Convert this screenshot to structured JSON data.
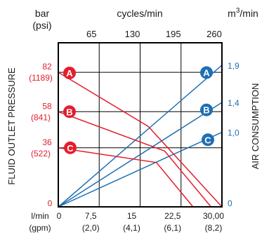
{
  "chart_data": {
    "type": "line",
    "axes": {
      "left_unit": "bar",
      "left_unit_alt": "(psi)",
      "top_unit": "cycles/min",
      "right_unit_base": "m",
      "right_unit_exp": "3",
      "right_unit_tail": "/min",
      "bottom_unit": "l/min",
      "bottom_unit_alt": "(gpm)",
      "left_title": "FLUID OUTLET PRESSURE",
      "right_title": "AIR CONSUMPTION"
    },
    "x_range": [
      0,
      30
    ],
    "pressure_range": [
      0,
      100
    ],
    "air_range": [
      0,
      2.2
    ],
    "cycles_ticks": [
      {
        "x": 7.5,
        "label": "65"
      },
      {
        "x": 15,
        "label": "130"
      },
      {
        "x": 22.5,
        "label": "195"
      },
      {
        "x": 30,
        "label": "260"
      }
    ],
    "flow_ticks": [
      {
        "x": 0,
        "label": "0",
        "alt": ""
      },
      {
        "x": 7.5,
        "label": "7,5",
        "alt": "(2,0)"
      },
      {
        "x": 15,
        "label": "15",
        "alt": "(4,1)"
      },
      {
        "x": 22.5,
        "label": "22,5",
        "alt": "(6,1)"
      },
      {
        "x": 30,
        "label": "30,00",
        "alt": "(8,2)"
      }
    ],
    "pressure_ticks": [
      {
        "value": 0,
        "label": "0",
        "alt": ""
      },
      {
        "value": 36,
        "label": "36",
        "alt": "(522)"
      },
      {
        "value": 58,
        "label": "58",
        "alt": "(841)"
      },
      {
        "value": 82,
        "label": "82",
        "alt": "(1189)"
      }
    ],
    "air_ticks": [
      {
        "value": 0,
        "label": "0"
      },
      {
        "value": 1.0,
        "label": "1,0"
      },
      {
        "value": 1.4,
        "label": "1,4"
      },
      {
        "value": 1.9,
        "label": "1,9"
      }
    ],
    "pressure_series": [
      {
        "name": "A",
        "points": [
          [
            0,
            82
          ],
          [
            16.5,
            49
          ],
          [
            30,
            0
          ]
        ]
      },
      {
        "name": "B",
        "points": [
          [
            0,
            58
          ],
          [
            19.5,
            34
          ],
          [
            28,
            0
          ]
        ]
      },
      {
        "name": "C",
        "points": [
          [
            0,
            36
          ],
          [
            18,
            27
          ],
          [
            24.7,
            0
          ]
        ]
      }
    ],
    "air_series": [
      {
        "name": "A",
        "points": [
          [
            0,
            0
          ],
          [
            30,
            1.9
          ]
        ]
      },
      {
        "name": "B",
        "points": [
          [
            0,
            0
          ],
          [
            30,
            1.4
          ]
        ]
      },
      {
        "name": "C",
        "points": [
          [
            0,
            0
          ],
          [
            30,
            1.0
          ]
        ]
      }
    ],
    "colors": {
      "pressure": "#e41d2d",
      "air": "#1f6fb4",
      "frame": "#000000",
      "grid": "#000000",
      "text": "#1a1a1a"
    }
  }
}
